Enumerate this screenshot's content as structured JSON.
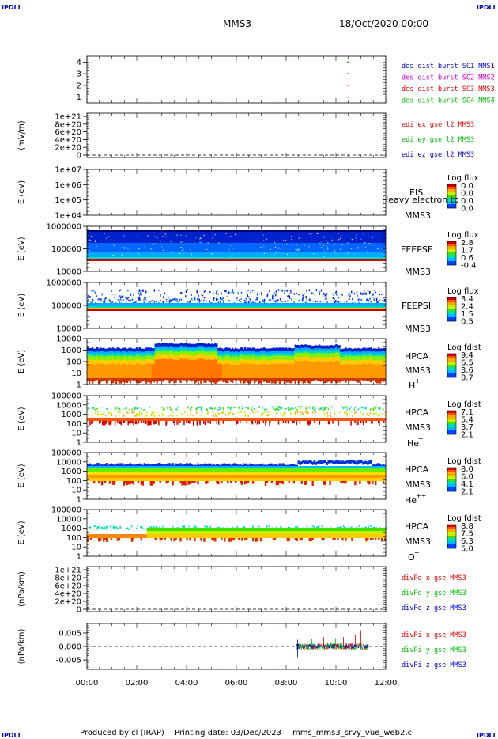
{
  "header": {
    "corner_tl": "IPDLI",
    "corner_tr": "IPDLI",
    "corner_bl": "IPDLI",
    "corner_br": "IPDLI",
    "spacecraft": "MMS3",
    "date": "18/Oct/2020 00:00"
  },
  "footer": {
    "produced_by": "Produced by cl (IRAP)",
    "printing_date": "Printing date: 03/Dec/2023",
    "filename": "mms_mms3_srvy_vue_web2.cl"
  },
  "colors": {
    "red": "#dd0000",
    "magenta": "#cc00cc",
    "green": "#00bb00",
    "blue": "#0000cc"
  },
  "chart_data": [
    {
      "type": "line",
      "panel": "burst",
      "yticks": [
        "4",
        "3",
        "2",
        "1"
      ],
      "ylim": [
        0.5,
        4.5
      ],
      "legend": [
        {
          "label": "des dist burst SC1 MMS1",
          "color": "#0000cc"
        },
        {
          "label": "des dist burst SC2 MMS2",
          "color": "#cc00cc"
        },
        {
          "label": "des dist burst SC3 MMS3",
          "color": "#dd0000"
        },
        {
          "label": "des dist burst SC4 MMS4",
          "color": "#00bb00"
        }
      ],
      "series": [
        {
          "name": "des dist burst SC1 MMS1",
          "x": [
            10.45,
            10.55
          ],
          "y": [
            1,
            1
          ]
        },
        {
          "name": "des dist burst SC2 MMS2",
          "x": [
            10.45,
            10.55
          ],
          "y": [
            2,
            2
          ]
        },
        {
          "name": "des dist burst SC3 MMS3",
          "x": [
            10.45,
            10.55
          ],
          "y": [
            3,
            3
          ]
        },
        {
          "name": "des dist burst SC4 MMS4",
          "x": [
            10.45,
            10.55
          ],
          "y": [
            4,
            4
          ]
        }
      ]
    },
    {
      "type": "line",
      "panel": "edi",
      "ylabel": "(mV/m)",
      "yticks": [
        "1e+21",
        "8e+20",
        "6e+20",
        "4e+20",
        "2e+20",
        "0"
      ],
      "legend": [
        {
          "label": "edi ex gse l2 MMS3",
          "color": "#dd0000"
        },
        {
          "label": "edi ey gse l2 MMS3",
          "color": "#00bb00"
        },
        {
          "label": "edi ez gse l2 MMS3",
          "color": "#0000cc"
        }
      ],
      "series": []
    },
    {
      "type": "heatmap",
      "panel": "eis",
      "ylabel": "E (eV)",
      "yticks": [
        "1e+07",
        "1e+06",
        "1e+05",
        "1e+04"
      ],
      "instrument": "EIS",
      "spacecraft": "MMS3",
      "overlay": "Heavy electron to",
      "colorbar_title": "Log flux",
      "colorbar_ticks": [
        "0.0",
        "0.0",
        "0.0",
        "0.0"
      ],
      "xrange": null
    },
    {
      "type": "heatmap",
      "panel": "feepse",
      "ylabel": "E (eV)",
      "yticks": [
        "1000000",
        "100000",
        "10000"
      ],
      "instrument": "FEEPSE",
      "spacecraft": "MMS3",
      "colorbar_title": "Log flux",
      "colorbar_ticks": [
        "2.8",
        "1.7",
        "0.6",
        "-0.4"
      ],
      "xrange": [
        0,
        12
      ]
    },
    {
      "type": "heatmap",
      "panel": "feepsi",
      "ylabel": "E (eV)",
      "yticks": [
        "1000000",
        "100000",
        "10000"
      ],
      "instrument": "FEEPSI",
      "spacecraft": "MMS3",
      "colorbar_title": "Log flux",
      "colorbar_ticks": [
        "3.4",
        "2.4",
        "1.5",
        "0.5"
      ],
      "xrange": [
        0,
        12
      ]
    },
    {
      "type": "heatmap",
      "panel": "hpca-h",
      "ylabel": "E (eV)",
      "yticks": [
        "10000",
        "1000",
        "100",
        "10",
        "1"
      ],
      "instrument": "HPCA",
      "spacecraft": "MMS3",
      "species": "H",
      "species_charge": "+",
      "colorbar_title": "Log fdist",
      "colorbar_ticks": [
        "9.4",
        "6.5",
        "3.6",
        "0.7"
      ],
      "xrange": [
        0,
        12
      ]
    },
    {
      "type": "heatmap",
      "panel": "hpca-he",
      "ylabel": "E (eV)",
      "yticks": [
        "100000",
        "10000",
        "1000",
        "100",
        "10",
        "1"
      ],
      "instrument": "HPCA",
      "spacecraft": "MMS3",
      "species": "He",
      "species_charge": "+",
      "colorbar_title": "Log fdist",
      "colorbar_ticks": [
        "7.1",
        "5.4",
        "3.7",
        "2.1"
      ],
      "xrange": [
        0,
        12
      ]
    },
    {
      "type": "heatmap",
      "panel": "hpca-he2",
      "ylabel": "E (eV)",
      "yticks": [
        "100000",
        "10000",
        "1000",
        "100",
        "10",
        "1"
      ],
      "instrument": "HPCA",
      "spacecraft": "MMS3",
      "species": "He",
      "species_charge": "++",
      "colorbar_title": "Log fdist",
      "colorbar_ticks": [
        "8.0",
        "6.0",
        "4.1",
        "2.1"
      ],
      "xrange": [
        0,
        12
      ]
    },
    {
      "type": "heatmap",
      "panel": "hpca-o",
      "ylabel": "E (eV)",
      "yticks": [
        "100000",
        "10000",
        "1000",
        "100",
        "10",
        "1"
      ],
      "instrument": "HPCA",
      "spacecraft": "MMS3",
      "species": "O",
      "species_charge": "+",
      "colorbar_title": "Log fdist",
      "colorbar_ticks": [
        "8.8",
        "7.5",
        "6.3",
        "5.0"
      ],
      "xrange": [
        0,
        12
      ]
    },
    {
      "type": "line",
      "panel": "divpe",
      "ylabel": "(nPa/km)",
      "yticks": [
        "1e+21",
        "8e+20",
        "6e+20",
        "4e+20",
        "2e+20",
        "0"
      ],
      "legend": [
        {
          "label": "divPe x gse MMS3",
          "color": "#dd0000"
        },
        {
          "label": "divPe y gse MMS3",
          "color": "#00bb00"
        },
        {
          "label": "divPe z gse MMS3",
          "color": "#0000cc"
        }
      ],
      "series": []
    },
    {
      "type": "line",
      "panel": "divpi",
      "ylabel": "(nPa/km)",
      "yticks": [
        "0.005",
        "0.000",
        "-0.005"
      ],
      "ylim": [
        -0.0085,
        0.0085
      ],
      "xrange": [
        8.4,
        11.3
      ],
      "legend": [
        {
          "label": "divPi x gse MMS3",
          "color": "#dd0000"
        },
        {
          "label": "divPi y gse MMS3",
          "color": "#00bb00"
        },
        {
          "label": "divPi z gse MMS3",
          "color": "#0000cc"
        }
      ]
    }
  ],
  "xaxis": {
    "ticks": [
      "00:00",
      "02:00",
      "04:00",
      "06:00",
      "08:00",
      "10:00",
      "12:00"
    ],
    "xlim": [
      0,
      12
    ]
  }
}
